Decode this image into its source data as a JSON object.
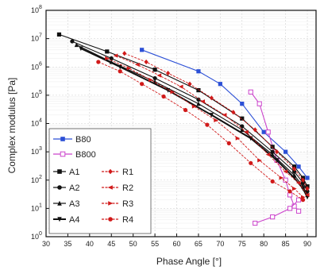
{
  "chart_data": {
    "type": "line",
    "xlabel": "Phase Angle [°]",
    "ylabel": "Complex modulus [Pa]",
    "xlim": [
      30,
      92
    ],
    "ylim_log10": [
      0,
      8
    ],
    "y_scale": "log",
    "x_ticks": [
      "30",
      "35",
      "40",
      "45",
      "50",
      "55",
      "60",
      "65",
      "70",
      "75",
      "80",
      "85",
      "90"
    ],
    "x_tick_values": [
      30,
      35,
      40,
      45,
      50,
      55,
      60,
      65,
      70,
      75,
      80,
      85,
      90
    ],
    "y_ticks": [
      "10",
      "10",
      "10",
      "10",
      "10",
      "10",
      "10",
      "10",
      "10"
    ],
    "y_tick_exponents": [
      "0",
      "1",
      "2",
      "3",
      "4",
      "5",
      "6",
      "7",
      "8"
    ],
    "grid": true,
    "legend_position": "bottom-left",
    "series": [
      {
        "name": "B80",
        "color": "#2b4fd6",
        "marker": "square-filled",
        "x": [
          52,
          65,
          70,
          75,
          80,
          85,
          88,
          90
        ],
        "y": [
          4000000.0,
          700000.0,
          250000.0,
          50000.0,
          5000.0,
          1000.0,
          300.0,
          120.0
        ]
      },
      {
        "name": "B800",
        "color": "#cc44cc",
        "marker": "square-open",
        "x": [
          77,
          79,
          81,
          83,
          85,
          86,
          87,
          88
        ],
        "y": [
          130000.0,
          50000.0,
          5000.0,
          500.0,
          100.0,
          30.0,
          12.0,
          8.0
        ],
        "x2": [
          78,
          82,
          86,
          88
        ],
        "y2": [
          3.0,
          5.0,
          10.0,
          20.0
        ]
      },
      {
        "name": "A1",
        "color": "#111111",
        "marker": "square-filled",
        "x": [
          33,
          44,
          55,
          65,
          75,
          82,
          87,
          89,
          90
        ],
        "y": [
          14000000.0,
          3500000.0,
          800000.0,
          150000.0,
          15000.0,
          1500.0,
          300.0,
          120.0,
          60.0
        ]
      },
      {
        "name": "A2",
        "color": "#111111",
        "marker": "circle-filled",
        "x": [
          36,
          45,
          55,
          65,
          75,
          82,
          87,
          89,
          90
        ],
        "y": [
          8000000.0,
          2000000.0,
          400000.0,
          70000.0,
          8000.0,
          1000.0,
          200.0,
          80.0,
          40.0
        ]
      },
      {
        "name": "A3",
        "color": "#111111",
        "marker": "triangle-up",
        "x": [
          37,
          45,
          55,
          65,
          75,
          82,
          87,
          89,
          90
        ],
        "y": [
          6000000.0,
          1500000.0,
          300000.0,
          50000.0,
          6000.0,
          800.0,
          150.0,
          60.0,
          30.0
        ]
      },
      {
        "name": "A4",
        "color": "#111111",
        "marker": "triangle-down",
        "x": [
          38,
          47,
          58,
          68,
          77,
          83,
          87,
          89,
          90
        ],
        "y": [
          4500000.0,
          1000000.0,
          150000.0,
          20000.0,
          3000.0,
          500.0,
          120.0,
          50.0,
          25.0
        ]
      },
      {
        "name": "R1",
        "color": "#d11a1a",
        "marker": "diamond",
        "x": [
          48,
          53,
          58,
          63,
          68,
          73,
          78,
          83,
          87,
          89,
          90
        ],
        "y": [
          3000000.0,
          1500000.0,
          600000.0,
          250000.0,
          80000.0,
          25000.0,
          6000.0,
          1000.0,
          250.0,
          100.0,
          50.0
        ]
      },
      {
        "name": "R2",
        "color": "#d11a1a",
        "marker": "triangle-left",
        "x": [
          46,
          51,
          56,
          61,
          66,
          71,
          76,
          81,
          85,
          88,
          90
        ],
        "y": [
          2500000.0,
          1200000.0,
          500000.0,
          200000.0,
          60000.0,
          20000.0,
          5000.0,
          800.0,
          200.0,
          80.0,
          30.0
        ]
      },
      {
        "name": "R3",
        "color": "#d11a1a",
        "marker": "triangle-right",
        "x": [
          44,
          49,
          54,
          59,
          64,
          69,
          74,
          79,
          84,
          87,
          89
        ],
        "y": [
          2000000.0,
          900000.0,
          350000.0,
          130000.0,
          40000.0,
          13000.0,
          3000.0,
          500.0,
          120.0,
          50.0,
          25.0
        ]
      },
      {
        "name": "R4",
        "color": "#d11a1a",
        "marker": "circle-filled",
        "x": [
          42,
          47,
          52,
          57,
          62,
          67,
          72,
          77,
          82,
          86,
          89
        ],
        "y": [
          1500000.0,
          700000.0,
          250000.0,
          90000.0,
          30000.0,
          9000.0,
          2000.0,
          400.0,
          90.0,
          40.0,
          20.0
        ]
      }
    ]
  }
}
